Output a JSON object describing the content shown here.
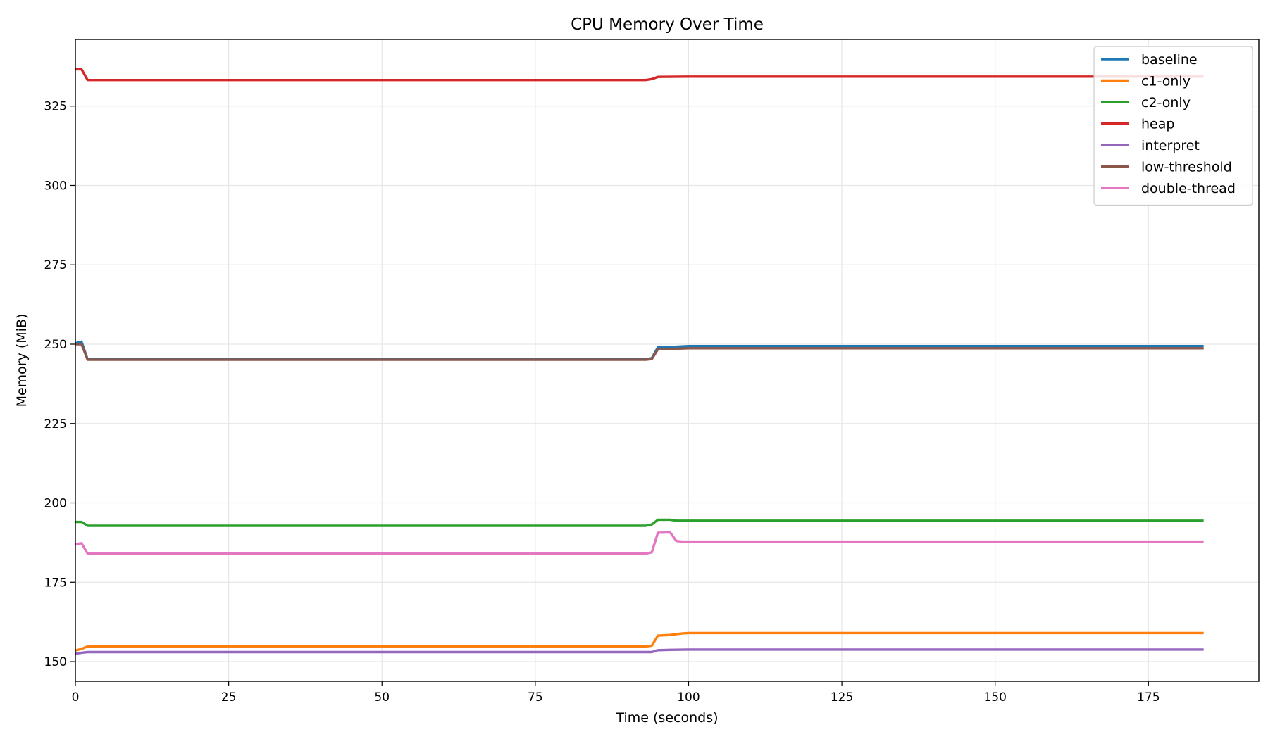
{
  "chart_data": {
    "type": "line",
    "title": "CPU Memory Over Time",
    "xlabel": "Time (seconds)",
    "ylabel": "Memory (MiB)",
    "xlim": [
      0,
      193
    ],
    "ylim": [
      143.8,
      346
    ],
    "x_ticks": [
      0,
      25,
      50,
      75,
      100,
      125,
      150,
      175
    ],
    "y_ticks": [
      150,
      175,
      200,
      225,
      250,
      275,
      300,
      325
    ],
    "grid": true,
    "legend_position": "top-right",
    "series": [
      {
        "name": "baseline",
        "color": "#1f77b4",
        "x": [
          0,
          1,
          2,
          93,
          94,
          95,
          97,
          100,
          184
        ],
        "y": [
          250.3,
          250.8,
          245.2,
          245.2,
          245.6,
          249.0,
          249.1,
          249.4,
          249.4
        ]
      },
      {
        "name": "c1-only",
        "color": "#ff7f0e",
        "x": [
          0,
          1,
          2,
          93,
          94,
          95,
          97,
          99,
          100,
          184
        ],
        "y": [
          153.5,
          154.0,
          154.8,
          154.8,
          155.0,
          158.2,
          158.4,
          158.9,
          159.0,
          159.0
        ],
        "label_color": "#000000"
      },
      {
        "name": "c2-only",
        "color": "#2ca02c",
        "x": [
          0,
          1,
          2,
          93,
          94,
          95,
          97,
          98,
          184
        ],
        "y": [
          194.0,
          194.0,
          192.8,
          192.8,
          193.2,
          194.7,
          194.7,
          194.4,
          194.4
        ]
      },
      {
        "name": "heap",
        "color": "#d62728",
        "x": [
          0,
          1,
          2,
          93,
          94,
          95,
          100,
          184
        ],
        "y": [
          336.6,
          336.6,
          333.2,
          333.2,
          333.5,
          334.2,
          334.3,
          334.3
        ]
      },
      {
        "name": "interpret",
        "color": "#9467bd",
        "x": [
          0,
          1,
          2,
          93,
          94,
          95,
          97,
          100,
          184
        ],
        "y": [
          152.5,
          152.8,
          153.0,
          153.0,
          153.0,
          153.6,
          153.7,
          153.8,
          153.8
        ]
      },
      {
        "name": "low-threshold",
        "color": "#8c564b",
        "x": [
          0,
          1,
          2,
          93,
          94,
          95,
          97,
          100,
          184
        ],
        "y": [
          250.0,
          250.0,
          245.1,
          245.1,
          245.3,
          248.4,
          248.5,
          248.7,
          248.7
        ]
      },
      {
        "name": "double-thread",
        "color": "#e377c2",
        "x": [
          0,
          1,
          2,
          93,
          94,
          95,
          97,
          98,
          99,
          184
        ],
        "y": [
          187.0,
          187.3,
          184.0,
          184.0,
          184.4,
          190.6,
          190.7,
          188.0,
          187.8,
          187.8
        ]
      }
    ]
  }
}
